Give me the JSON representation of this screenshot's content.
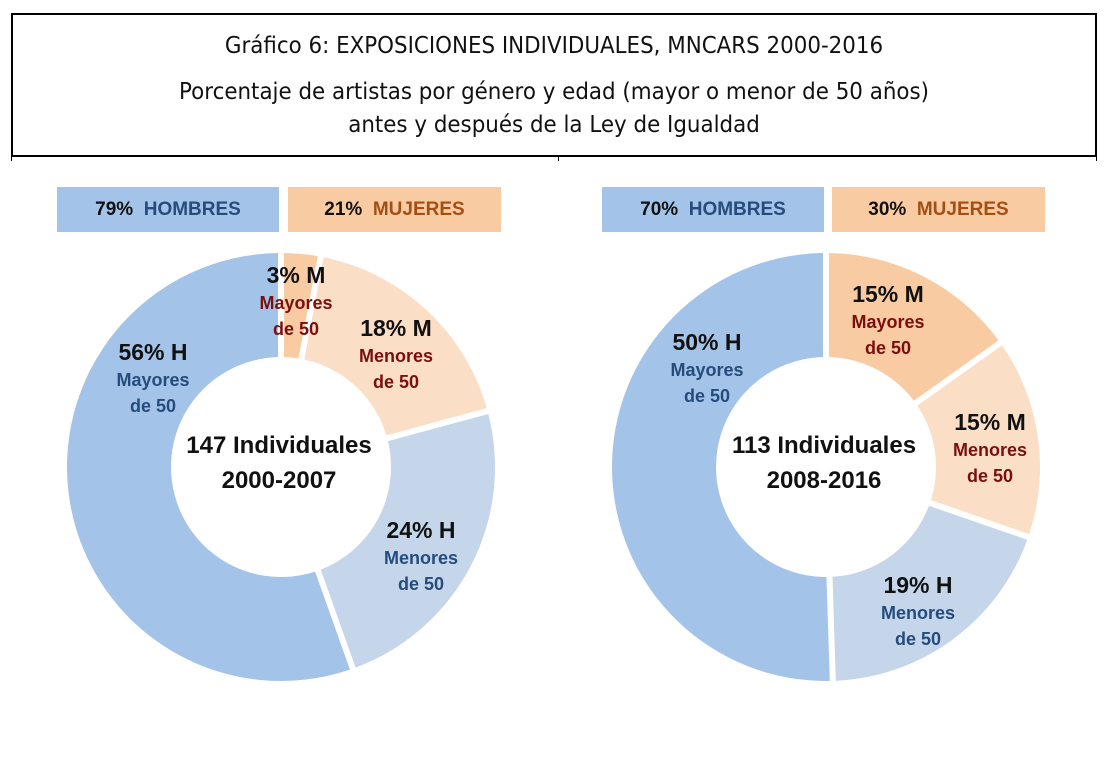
{
  "header": {
    "title": "Gráfico 6: EXPOSICIONES INDIVIDUALES, MNCARS 2000-2016",
    "subtitle_line1": "Porcentaje de artistas por género y edad (mayor o menor de 50 años)",
    "subtitle_line2": "antes y después de la Ley de Igualdad"
  },
  "colors": {
    "h_mayores": "#a4c3e8",
    "h_menores": "#c5d6ea",
    "m_mayores": "#f9cba3",
    "m_menores": "#fbdec6",
    "h_label_text": "#244c7c",
    "m_label_text": "#7a0f0f",
    "m_legend_text": "#a34f12"
  },
  "chart_data": [
    {
      "type": "pie",
      "variant": "donut",
      "title": "147 Individuales 2000-2007",
      "center_label": [
        "147 Individuales",
        "2000-2007"
      ],
      "legend": [
        {
          "pct": "79%",
          "label": "HOMBRES",
          "group": "h"
        },
        {
          "pct": "21%",
          "label": "MUJERES",
          "group": "m"
        }
      ],
      "slices": [
        {
          "name": "Mujeres mayores de 50",
          "value": 3,
          "pct_label": "3% M",
          "sub1": "Mayores",
          "sub2": "de 50",
          "color_key": "m_mayores",
          "text_key": "m_label_text"
        },
        {
          "name": "Mujeres menores de 50",
          "value": 18,
          "pct_label": "18% M",
          "sub1": "Menores",
          "sub2": "de 50",
          "color_key": "m_menores",
          "text_key": "m_label_text"
        },
        {
          "name": "Hombres menores de 50",
          "value": 24,
          "pct_label": "24% H",
          "sub1": "Menores",
          "sub2": "de 50",
          "color_key": "h_menores",
          "text_key": "h_label_text"
        },
        {
          "name": "Hombres mayores de 50",
          "value": 56,
          "pct_label": "56% H",
          "sub1": "Mayores",
          "sub2": "de 50",
          "color_key": "h_mayores",
          "text_key": "h_label_text"
        }
      ]
    },
    {
      "type": "pie",
      "variant": "donut",
      "title": "113 Individuales 2008-2016",
      "center_label": [
        "113 Individuales",
        "2008-2016"
      ],
      "legend": [
        {
          "pct": "70%",
          "label": "HOMBRES",
          "group": "h"
        },
        {
          "pct": "30%",
          "label": "MUJERES",
          "group": "m"
        }
      ],
      "slices": [
        {
          "name": "Mujeres mayores de 50",
          "value": 15,
          "pct_label": "15% M",
          "sub1": "Mayores",
          "sub2": "de 50",
          "color_key": "m_mayores",
          "text_key": "m_label_text"
        },
        {
          "name": "Mujeres menores de 50",
          "value": 15,
          "pct_label": "15% M",
          "sub1": "Menores",
          "sub2": "de 50",
          "color_key": "m_menores",
          "text_key": "m_label_text"
        },
        {
          "name": "Hombres menores de 50",
          "value": 19,
          "pct_label": "19% H",
          "sub1": "Menores",
          "sub2": "de 50",
          "color_key": "h_menores",
          "text_key": "h_label_text"
        },
        {
          "name": "Hombres mayores de 50",
          "value": 50,
          "pct_label": "50% H",
          "sub1": "Mayores",
          "sub2": "de 50",
          "color_key": "h_mayores",
          "text_key": "h_label_text"
        }
      ]
    }
  ]
}
